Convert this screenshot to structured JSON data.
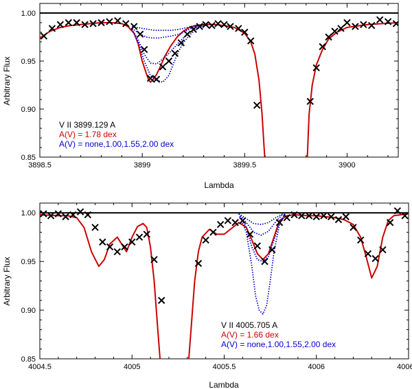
{
  "chart_data": [
    {
      "type": "line",
      "title": "",
      "xlabel": "Lambda",
      "ylabel": "Arbitrary Flux",
      "xlim": [
        3898.5,
        3900.25
      ],
      "ylim": [
        0.85,
        1.01
      ],
      "xticks": [
        3898.5,
        3899,
        3899.5,
        3900
      ],
      "xtick_labels": [
        "3898.5",
        "3899",
        "3899.5",
        "3900"
      ],
      "yticks": [
        0.85,
        0.9,
        0.95,
        1.0
      ],
      "ytick_labels": [
        "0.85",
        "0.90",
        "0.95",
        "1.00"
      ],
      "continuum": 1.0,
      "annotations": [
        {
          "text": "V II 3899.129 A",
          "color": "#000000"
        },
        {
          "text": "A(V) = 1.78 dex",
          "color": "#cc0000"
        },
        {
          "text": "A(V) = none,1.00,1.55,2.00 dex",
          "color": "#0000cc"
        }
      ],
      "observed": {
        "name": "observed",
        "marker": "x",
        "x": [
          3898.52,
          3898.56,
          3898.6,
          3898.64,
          3898.68,
          3898.72,
          3898.76,
          3898.8,
          3898.84,
          3898.88,
          3898.92,
          3898.96,
          3898.99,
          3899.01,
          3899.04,
          3899.07,
          3899.1,
          3899.13,
          3899.16,
          3899.19,
          3899.22,
          3899.25,
          3899.28,
          3899.31,
          3899.34,
          3899.37,
          3899.4,
          3899.43,
          3899.47,
          3899.5,
          3899.53,
          3899.56,
          3899.82,
          3899.85,
          3899.88,
          3899.91,
          3899.94,
          3899.97,
          3900.0,
          3900.04,
          3900.08,
          3900.12,
          3900.16,
          3900.2,
          3900.24
        ],
        "y": [
          0.976,
          0.984,
          0.988,
          0.99,
          0.99,
          0.988,
          0.989,
          0.99,
          0.991,
          0.992,
          0.989,
          0.986,
          0.978,
          0.962,
          0.932,
          0.931,
          0.944,
          0.95,
          0.958,
          0.969,
          0.978,
          0.983,
          0.986,
          0.988,
          0.987,
          0.989,
          0.988,
          0.986,
          0.984,
          0.98,
          0.971,
          0.904,
          0.908,
          0.943,
          0.965,
          0.975,
          0.981,
          0.984,
          0.99,
          0.986,
          0.988,
          0.987,
          0.993,
          0.991,
          0.989
        ]
      },
      "series": [
        {
          "name": "A(V) = 1.78 dex",
          "color": "#cc0000",
          "style": "solid",
          "x": [
            3898.5,
            3898.55,
            3898.6,
            3898.65,
            3898.7,
            3898.75,
            3898.8,
            3898.85,
            3898.9,
            3898.93,
            3898.96,
            3898.98,
            3899.0,
            3899.02,
            3899.03,
            3899.04,
            3899.05,
            3899.07,
            3899.09,
            3899.11,
            3899.14,
            3899.17,
            3899.2,
            3899.23,
            3899.26,
            3899.3,
            3899.35,
            3899.4,
            3899.45,
            3899.5,
            3899.53,
            3899.55,
            3899.57,
            3899.585,
            3899.595,
            3899.6,
            3899.605,
            3899.8,
            3899.805,
            3899.81,
            3899.815,
            3899.83,
            3899.85,
            3899.88,
            3899.91,
            3899.95,
            3900.0,
            3900.1,
            3900.25
          ],
          "y": [
            0.974,
            0.981,
            0.985,
            0.987,
            0.988,
            0.989,
            0.99,
            0.99,
            0.989,
            0.986,
            0.979,
            0.968,
            0.95,
            0.937,
            0.931,
            0.928,
            0.93,
            0.936,
            0.945,
            0.955,
            0.966,
            0.975,
            0.981,
            0.985,
            0.987,
            0.988,
            0.988,
            0.987,
            0.985,
            0.979,
            0.97,
            0.957,
            0.93,
            0.895,
            0.86,
            0.845,
            0.83,
            0.83,
            0.845,
            0.872,
            0.895,
            0.925,
            0.946,
            0.962,
            0.973,
            0.98,
            0.985,
            0.988,
            0.99
          ]
        },
        {
          "name": "A(V) = none",
          "color": "#0000cc",
          "style": "dotted",
          "x": [
            3898.95,
            3899.0,
            3899.03,
            3899.06,
            3899.1,
            3899.14,
            3899.18,
            3899.22,
            3899.26,
            3899.3
          ],
          "y": [
            0.986,
            0.984,
            0.983,
            0.982,
            0.982,
            0.982,
            0.983,
            0.985,
            0.987,
            0.988
          ]
        },
        {
          "name": "A(V) = 1.00",
          "color": "#0000cc",
          "style": "dotted",
          "x": [
            3898.95,
            3898.99,
            3899.02,
            3899.05,
            3899.08,
            3899.11,
            3899.14,
            3899.18,
            3899.22,
            3899.26,
            3899.3
          ],
          "y": [
            0.984,
            0.978,
            0.975,
            0.974,
            0.974,
            0.975,
            0.976,
            0.978,
            0.982,
            0.986,
            0.988
          ]
        },
        {
          "name": "A(V) = 1.55",
          "color": "#0000cc",
          "style": "dotted",
          "x": [
            3898.95,
            3898.98,
            3899.01,
            3899.04,
            3899.07,
            3899.1,
            3899.13,
            3899.16,
            3899.2,
            3899.24,
            3899.28,
            3899.32
          ],
          "y": [
            0.983,
            0.972,
            0.957,
            0.948,
            0.947,
            0.952,
            0.958,
            0.965,
            0.974,
            0.981,
            0.986,
            0.988
          ]
        },
        {
          "name": "A(V) = 2.00",
          "color": "#0000cc",
          "style": "dotted",
          "x": [
            3898.95,
            3898.98,
            3899.01,
            3899.04,
            3899.07,
            3899.1,
            3899.13,
            3899.15,
            3899.17,
            3899.2,
            3899.24,
            3899.28,
            3899.32
          ],
          "y": [
            0.983,
            0.97,
            0.95,
            0.935,
            0.93,
            0.928,
            0.935,
            0.946,
            0.957,
            0.969,
            0.979,
            0.985,
            0.988
          ]
        }
      ]
    },
    {
      "type": "line",
      "title": "",
      "xlabel": "Lambda",
      "ylabel": "Arbitrary Flux",
      "xlim": [
        4004.5,
        4006.5
      ],
      "ylim": [
        0.85,
        1.01
      ],
      "xticks": [
        4004.5,
        4005,
        4005.5,
        4006,
        4006.5
      ],
      "xtick_labels": [
        "4004.5",
        "4005",
        "4005.5",
        "4006",
        "4006.5"
      ],
      "yticks": [
        0.85,
        0.9,
        0.95,
        1.0
      ],
      "ytick_labels": [
        "0.85",
        "0.90",
        "0.95",
        "1.00"
      ],
      "continuum": 1.0,
      "annotations": [
        {
          "text": "V II 4005.705 A",
          "color": "#000000"
        },
        {
          "text": "A(V) = 1.66 dex",
          "color": "#cc0000"
        },
        {
          "text": "A(V) = none,1.00,1.55,2.00 dex",
          "color": "#0000cc"
        }
      ],
      "observed": {
        "name": "observed",
        "marker": "x",
        "x": [
          4004.52,
          4004.56,
          4004.6,
          4004.64,
          4004.68,
          4004.72,
          4004.76,
          4004.8,
          4004.84,
          4004.88,
          4004.92,
          4004.96,
          4005.0,
          4005.04,
          4005.08,
          4005.12,
          4005.16,
          4005.36,
          4005.4,
          4005.44,
          4005.48,
          4005.52,
          4005.56,
          4005.6,
          4005.64,
          4005.68,
          4005.72,
          4005.76,
          4005.8,
          4005.84,
          4005.88,
          4005.92,
          4005.96,
          4006.0,
          4006.04,
          4006.08,
          4006.12,
          4006.16,
          4006.2,
          4006.24,
          4006.28,
          4006.32,
          4006.36,
          4006.4,
          4006.44,
          4006.48
        ],
        "y": [
          0.999,
          0.997,
          0.999,
          0.996,
          0.998,
          1.001,
          0.998,
          0.985,
          0.97,
          0.965,
          0.96,
          0.965,
          0.97,
          0.975,
          0.978,
          0.952,
          0.91,
          0.948,
          0.972,
          0.98,
          0.988,
          0.992,
          0.99,
          0.992,
          0.978,
          0.966,
          0.95,
          0.962,
          0.99,
          0.995,
          0.998,
          0.997,
          0.997,
          0.996,
          0.997,
          0.996,
          0.993,
          0.996,
          0.985,
          0.972,
          0.958,
          0.953,
          0.962,
          0.99,
          1.002,
          0.997
        ]
      },
      "series": [
        {
          "name": "A(V) = 1.66 dex",
          "color": "#cc0000",
          "style": "solid",
          "x": [
            4004.5,
            4004.6,
            4004.65,
            4004.7,
            4004.74,
            4004.78,
            4004.82,
            4004.85,
            4004.88,
            4004.92,
            4004.97,
            4005.0,
            4005.03,
            4005.06,
            4005.08,
            4005.1,
            4005.12,
            4005.14,
            4005.16,
            4005.18,
            4005.3,
            4005.32,
            4005.34,
            4005.36,
            4005.38,
            4005.42,
            4005.46,
            4005.5,
            4005.54,
            4005.58,
            4005.62,
            4005.65,
            4005.68,
            4005.71,
            4005.74,
            4005.77,
            4005.8,
            4005.84,
            4005.88,
            4005.95,
            4006.0,
            4006.05,
            4006.1,
            4006.15,
            4006.2,
            4006.24,
            4006.27,
            4006.3,
            4006.33,
            4006.36,
            4006.39,
            4006.42,
            4006.5
          ],
          "y": [
            0.998,
            0.997,
            0.997,
            0.995,
            0.985,
            0.96,
            0.945,
            0.952,
            0.968,
            0.975,
            0.96,
            0.975,
            0.986,
            0.989,
            0.985,
            0.965,
            0.93,
            0.88,
            0.83,
            0.83,
            0.83,
            0.88,
            0.93,
            0.96,
            0.975,
            0.983,
            0.978,
            0.978,
            0.984,
            0.99,
            0.985,
            0.972,
            0.958,
            0.952,
            0.958,
            0.975,
            0.992,
            0.997,
            0.998,
            0.997,
            0.997,
            0.996,
            0.995,
            0.993,
            0.988,
            0.975,
            0.955,
            0.933,
            0.945,
            0.975,
            0.992,
            0.997,
            0.999
          ]
        },
        {
          "name": "A(V) = none",
          "color": "#0000cc",
          "style": "dotted",
          "x": [
            4005.58,
            4005.62,
            4005.66,
            4005.7,
            4005.74,
            4005.78,
            4005.82
          ],
          "y": [
            0.999,
            0.994,
            0.989,
            0.988,
            0.99,
            0.995,
            0.999
          ]
        },
        {
          "name": "A(V) = 1.00",
          "color": "#0000cc",
          "style": "dotted",
          "x": [
            4005.58,
            4005.62,
            4005.66,
            4005.7,
            4005.74,
            4005.78,
            4005.82
          ],
          "y": [
            0.999,
            0.99,
            0.98,
            0.977,
            0.981,
            0.991,
            0.999
          ]
        },
        {
          "name": "A(V) = 1.55",
          "color": "#0000cc",
          "style": "dotted",
          "x": [
            4005.58,
            4005.62,
            4005.65,
            4005.68,
            4005.71,
            4005.74,
            4005.77,
            4005.8,
            4005.83
          ],
          "y": [
            0.999,
            0.985,
            0.965,
            0.952,
            0.95,
            0.955,
            0.972,
            0.99,
            0.999
          ]
        },
        {
          "name": "A(V) = 2.00",
          "color": "#0000cc",
          "style": "dotted",
          "x": [
            4005.58,
            4005.62,
            4005.65,
            4005.67,
            4005.69,
            4005.71,
            4005.73,
            4005.75,
            4005.77,
            4005.8,
            4005.83
          ],
          "y": [
            0.999,
            0.98,
            0.945,
            0.915,
            0.9,
            0.896,
            0.905,
            0.93,
            0.96,
            0.988,
            0.999
          ]
        }
      ]
    }
  ]
}
